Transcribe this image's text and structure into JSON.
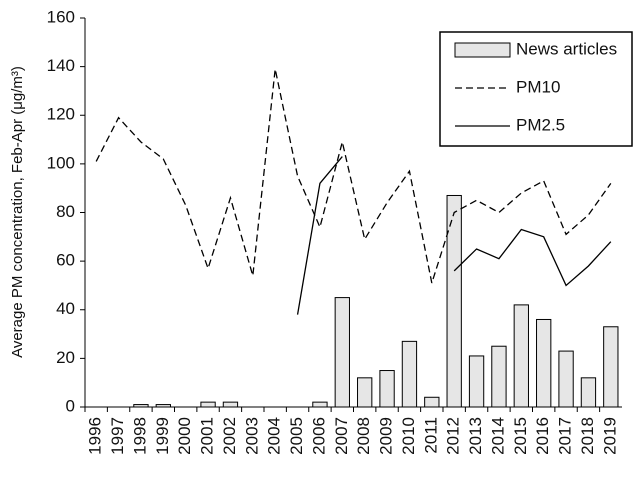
{
  "chart_data": {
    "type": "combo",
    "y_label": "Average PM concentration, Feb-Apr (μg/m³)",
    "categories": [
      "1996",
      "1997",
      "1998",
      "1999",
      "2000",
      "2001",
      "2002",
      "2003",
      "2004",
      "2005",
      "2006",
      "2007",
      "2008",
      "2009",
      "2010",
      "2011",
      "2012",
      "2013",
      "2014",
      "2015",
      "2016",
      "2017",
      "2018",
      "2019"
    ],
    "series": [
      {
        "name": "News articles",
        "type": "bar",
        "color": "#e6e6e6",
        "values": [
          0,
          0,
          1,
          1,
          0,
          2,
          2,
          0,
          0,
          0,
          2,
          45,
          12,
          15,
          27,
          4,
          87,
          21,
          25,
          42,
          36,
          23,
          12,
          33
        ]
      },
      {
        "name": "PM10",
        "type": "line",
        "linestyle": "dashed",
        "color": "#000000",
        "values": [
          101,
          119,
          109,
          102,
          83,
          57,
          86,
          54,
          139,
          95,
          74,
          109,
          69,
          84,
          97,
          51,
          80,
          85,
          80,
          88,
          93,
          71,
          79,
          92
        ]
      },
      {
        "name": "PM2.5",
        "type": "line",
        "linestyle": "solid",
        "color": "#000000",
        "values": [
          null,
          null,
          null,
          null,
          null,
          null,
          null,
          null,
          null,
          38,
          92,
          103,
          null,
          null,
          null,
          null,
          56,
          65,
          61,
          73,
          70,
          50,
          58,
          68
        ]
      }
    ],
    "ylim": [
      0,
      160
    ],
    "yticks": [
      0,
      20,
      40,
      60,
      80,
      100,
      120,
      140,
      160
    ],
    "grid": false,
    "legend": "upper right"
  }
}
